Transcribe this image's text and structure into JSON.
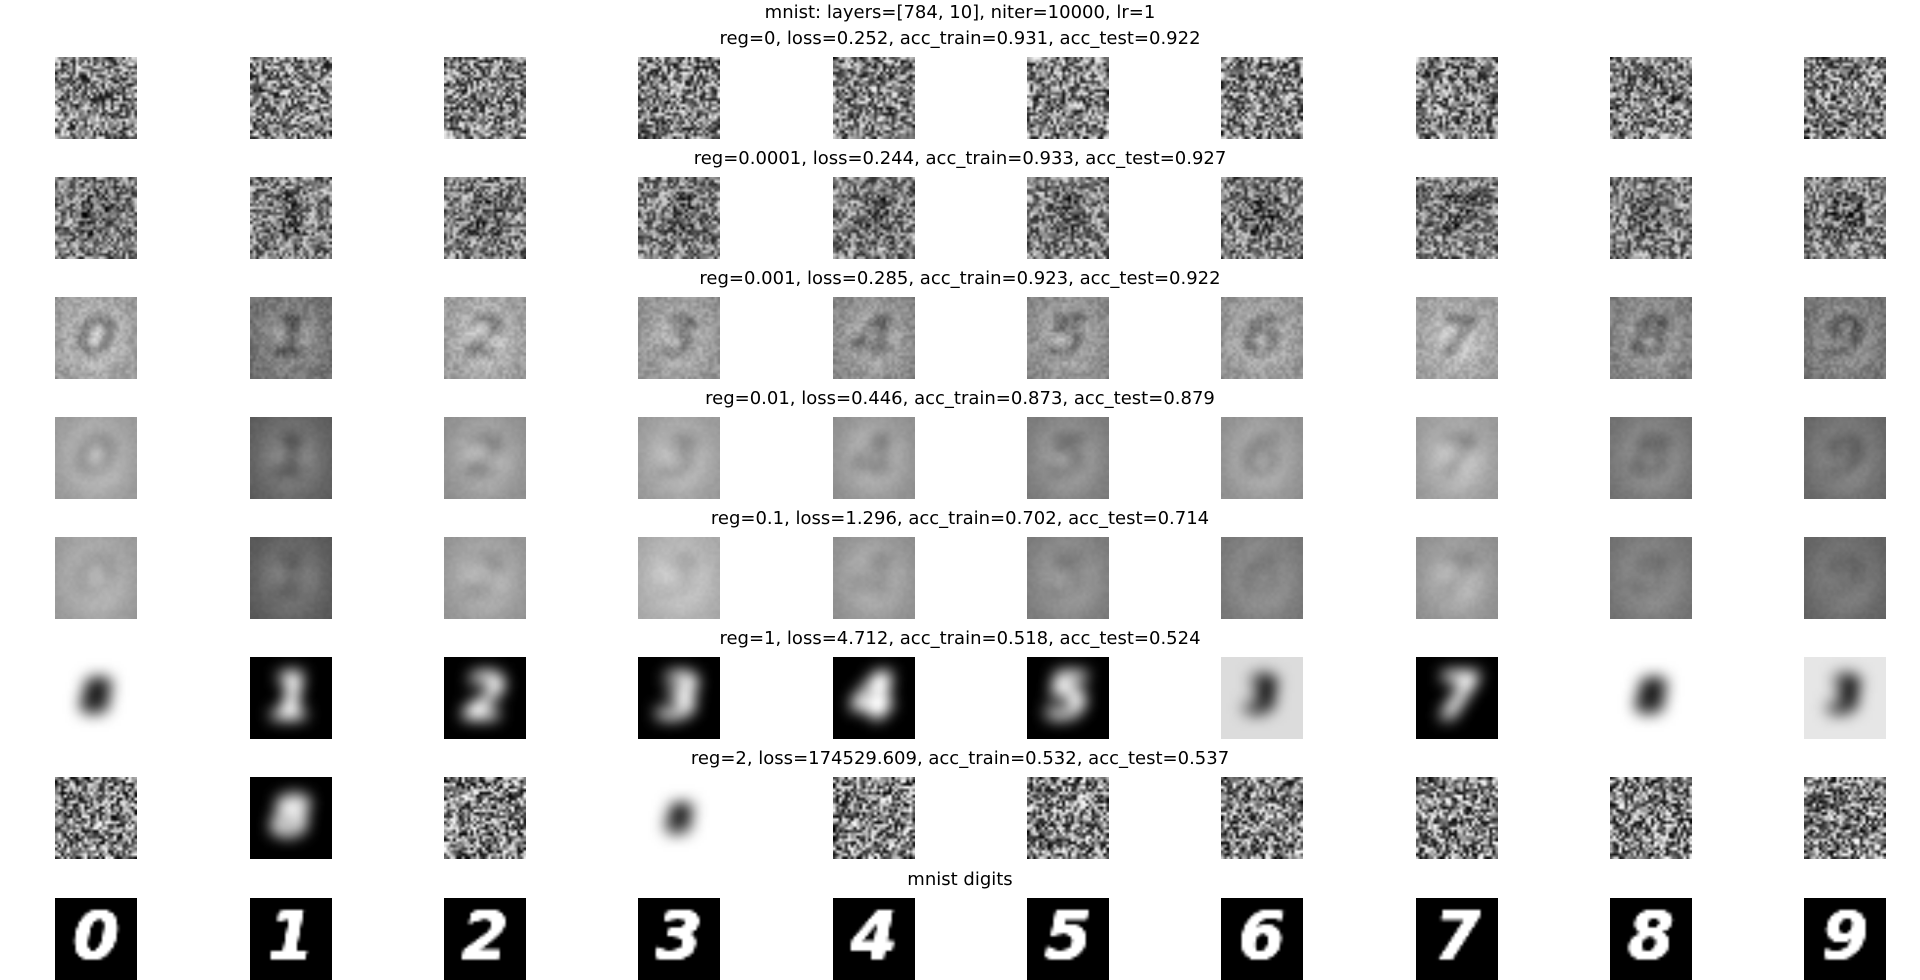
{
  "figure": {
    "title": "mnist: layers=[784, 10], niter=10000, lr=1"
  },
  "rows": [
    {
      "title": "reg=0, loss=0.252, acc_train=0.931, acc_test=0.922",
      "kind": "noise",
      "contrast": 0.9,
      "blur": 0.2
    },
    {
      "title": "reg=0.0001, loss=0.244, acc_train=0.933, acc_test=0.927",
      "kind": "noise-digit",
      "contrast": 0.8,
      "blur": 0.5
    },
    {
      "title": "reg=0.001, loss=0.285, acc_train=0.923, acc_test=0.922",
      "kind": "smooth-filter",
      "contrast": 0.7,
      "blur": 1.4
    },
    {
      "title": "reg=0.01, loss=0.446, acc_train=0.873, acc_test=0.879",
      "kind": "smooth-filter",
      "contrast": 0.65,
      "blur": 2.0
    },
    {
      "title": "reg=0.1, loss=1.296, acc_train=0.702, acc_test=0.714",
      "kind": "smooth-filter",
      "contrast": 0.6,
      "blur": 2.4
    },
    {
      "title": "reg=1, loss=4.712, acc_train=0.518, acc_test=0.524",
      "kind": "template",
      "contrast": 1.0,
      "blur": 2.6
    },
    {
      "title": "reg=2, loss=174529.609, acc_train=0.532, acc_test=0.537",
      "kind": "mixed",
      "contrast": 1.0,
      "blur": 2.6
    },
    {
      "title": "mnist digits",
      "kind": "digits",
      "contrast": 1.0,
      "blur": 0.0
    }
  ],
  "digits": [
    "0",
    "1",
    "2",
    "3",
    "4",
    "5",
    "6",
    "7",
    "8",
    "9"
  ]
}
